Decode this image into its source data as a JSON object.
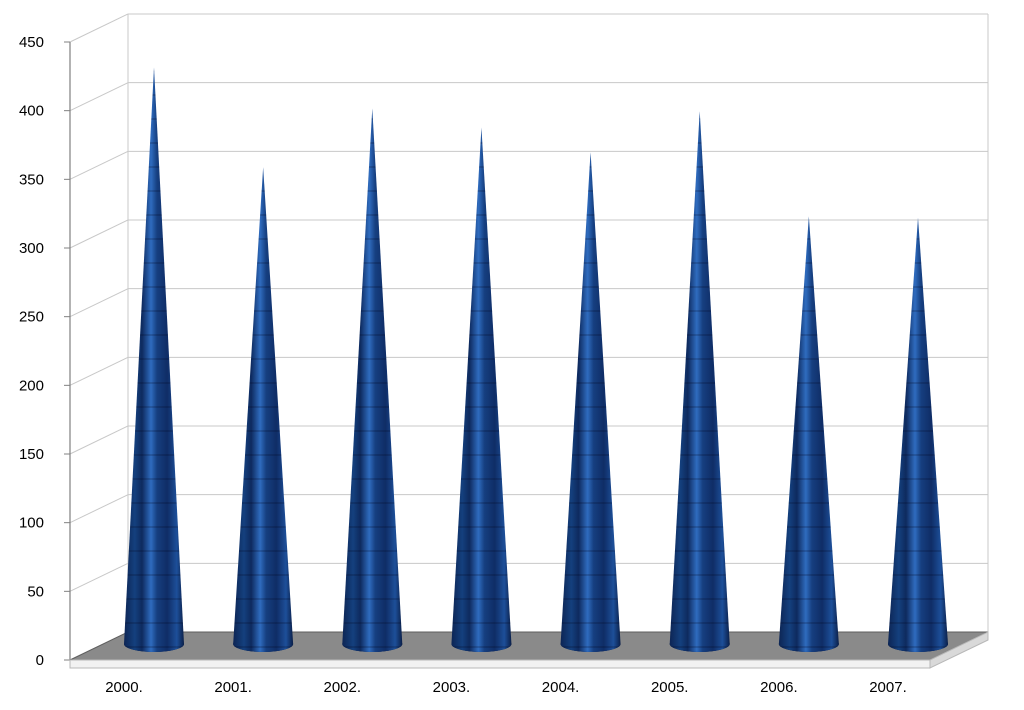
{
  "chart_data": {
    "type": "bar",
    "subtype": "3d-cone",
    "categories": [
      "2000.",
      "2001.",
      "2002.",
      "2003.",
      "2004.",
      "2005.",
      "2006.",
      "2007."
    ],
    "values": [
      422,
      349,
      392,
      378,
      360,
      390,
      313,
      312
    ],
    "ylim": [
      0,
      450
    ],
    "yticks": [
      "0",
      "50",
      "100",
      "150",
      "200",
      "250",
      "300",
      "350",
      "400",
      "450"
    ],
    "ytick_values": [
      0,
      50,
      100,
      150,
      200,
      250,
      300,
      350,
      400,
      450
    ],
    "grid": true,
    "legend": "none",
    "title": "",
    "xlabel": "",
    "ylabel": ""
  },
  "colors": {
    "cone_dark": "#0d2554",
    "cone_mid": "#14407e",
    "cone_light": "#2f6cbf",
    "floor": "#8a8a8a",
    "floor_edge": "#5f5f5f",
    "grid": "#c8c8c8",
    "axis": "#808080"
  }
}
